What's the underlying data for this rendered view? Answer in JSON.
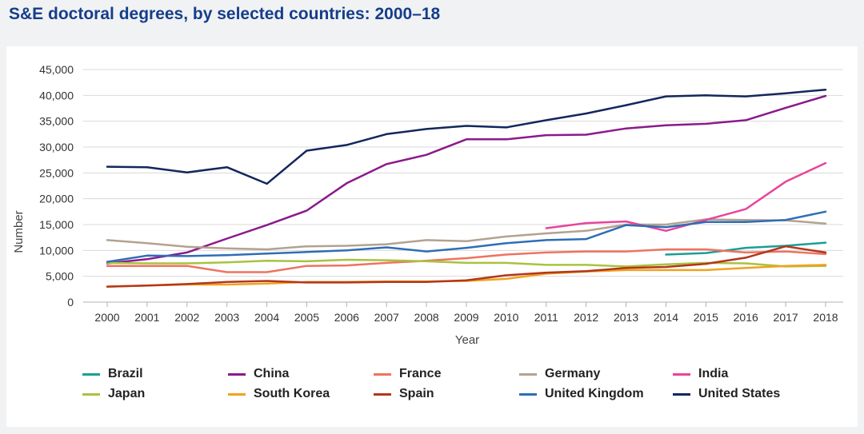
{
  "title": "S&E doctoral degrees, by selected countries: 2000–18",
  "chart_data": {
    "type": "line",
    "title": "S&E doctoral degrees, by selected countries: 2000–18",
    "xlabel": "Year",
    "ylabel": "Number",
    "ylim": [
      0,
      45000
    ],
    "y_ticks": [
      0,
      5000,
      10000,
      15000,
      20000,
      25000,
      30000,
      35000,
      40000,
      45000
    ],
    "y_tick_labels": [
      "0",
      "5,000",
      "10,000",
      "15,000",
      "20,000",
      "25,000",
      "30,000",
      "35,000",
      "40,000",
      "45,000"
    ],
    "grid": true,
    "legend_position": "bottom",
    "categories": [
      "2000",
      "2001",
      "2002",
      "2003",
      "2004",
      "2005",
      "2006",
      "2007",
      "2008",
      "2009",
      "2010",
      "2011",
      "2012",
      "2013",
      "2014",
      "2015",
      "2016",
      "2017",
      "2018"
    ],
    "series": [
      {
        "name": "Brazil",
        "color": "#1a9e95",
        "values": [
          null,
          null,
          null,
          null,
          null,
          null,
          null,
          null,
          null,
          null,
          null,
          null,
          null,
          null,
          9200,
          9500,
          10500,
          10900,
          11500
        ]
      },
      {
        "name": "China",
        "color": "#8b1a8b",
        "values": [
          7500,
          8300,
          9600,
          12300,
          14900,
          17700,
          23000,
          26700,
          28500,
          31500,
          31500,
          32300,
          32400,
          33600,
          34200,
          34500,
          35200,
          37600,
          39900
        ]
      },
      {
        "name": "France",
        "color": "#ee7360",
        "values": [
          7000,
          7000,
          7000,
          5800,
          5800,
          7000,
          7100,
          7600,
          8000,
          8500,
          9200,
          9600,
          9800,
          9800,
          10200,
          10200,
          9600,
          9800,
          9300
        ]
      },
      {
        "name": "Germany",
        "color": "#b3a28f",
        "values": [
          12000,
          11400,
          10700,
          10400,
          10200,
          10800,
          10900,
          11200,
          12000,
          11800,
          12700,
          13300,
          13800,
          15000,
          15000,
          16000,
          15900,
          15800,
          15200
        ]
      },
      {
        "name": "India",
        "color": "#e8449a",
        "values": [
          null,
          null,
          null,
          null,
          null,
          null,
          null,
          null,
          null,
          null,
          null,
          14300,
          15300,
          15600,
          13800,
          15900,
          18000,
          23300,
          26900
        ]
      },
      {
        "name": "Japan",
        "color": "#a9c23f",
        "values": [
          7600,
          7500,
          7500,
          7700,
          8000,
          7900,
          8200,
          8100,
          7900,
          7600,
          7600,
          7200,
          7200,
          6900,
          7300,
          7600,
          7500,
          6900,
          7000
        ]
      },
      {
        "name": "South Korea",
        "color": "#f0a21e",
        "values": [
          3000,
          3200,
          3400,
          3400,
          3600,
          3900,
          3900,
          4000,
          4000,
          4100,
          4500,
          5500,
          5900,
          6200,
          6200,
          6200,
          6600,
          7000,
          7200
        ]
      },
      {
        "name": "Spain",
        "color": "#b3361c",
        "values": [
          3000,
          3200,
          3500,
          3900,
          4100,
          3800,
          3800,
          3900,
          3900,
          4200,
          5200,
          5700,
          6000,
          6600,
          6800,
          7400,
          8600,
          10800,
          9600
        ]
      },
      {
        "name": "United Kingdom",
        "color": "#2f6db5",
        "values": [
          7800,
          9000,
          8900,
          9100,
          9400,
          9700,
          10000,
          10600,
          9800,
          10500,
          11400,
          12000,
          12200,
          14900,
          14500,
          15500,
          15500,
          15900,
          17500
        ]
      },
      {
        "name": "United States",
        "color": "#12275c",
        "values": [
          26200,
          26100,
          25100,
          26100,
          22900,
          29300,
          30400,
          32500,
          33500,
          34100,
          33800,
          35200,
          36500,
          38100,
          39800,
          40000,
          39800,
          40400,
          41100
        ]
      }
    ]
  }
}
